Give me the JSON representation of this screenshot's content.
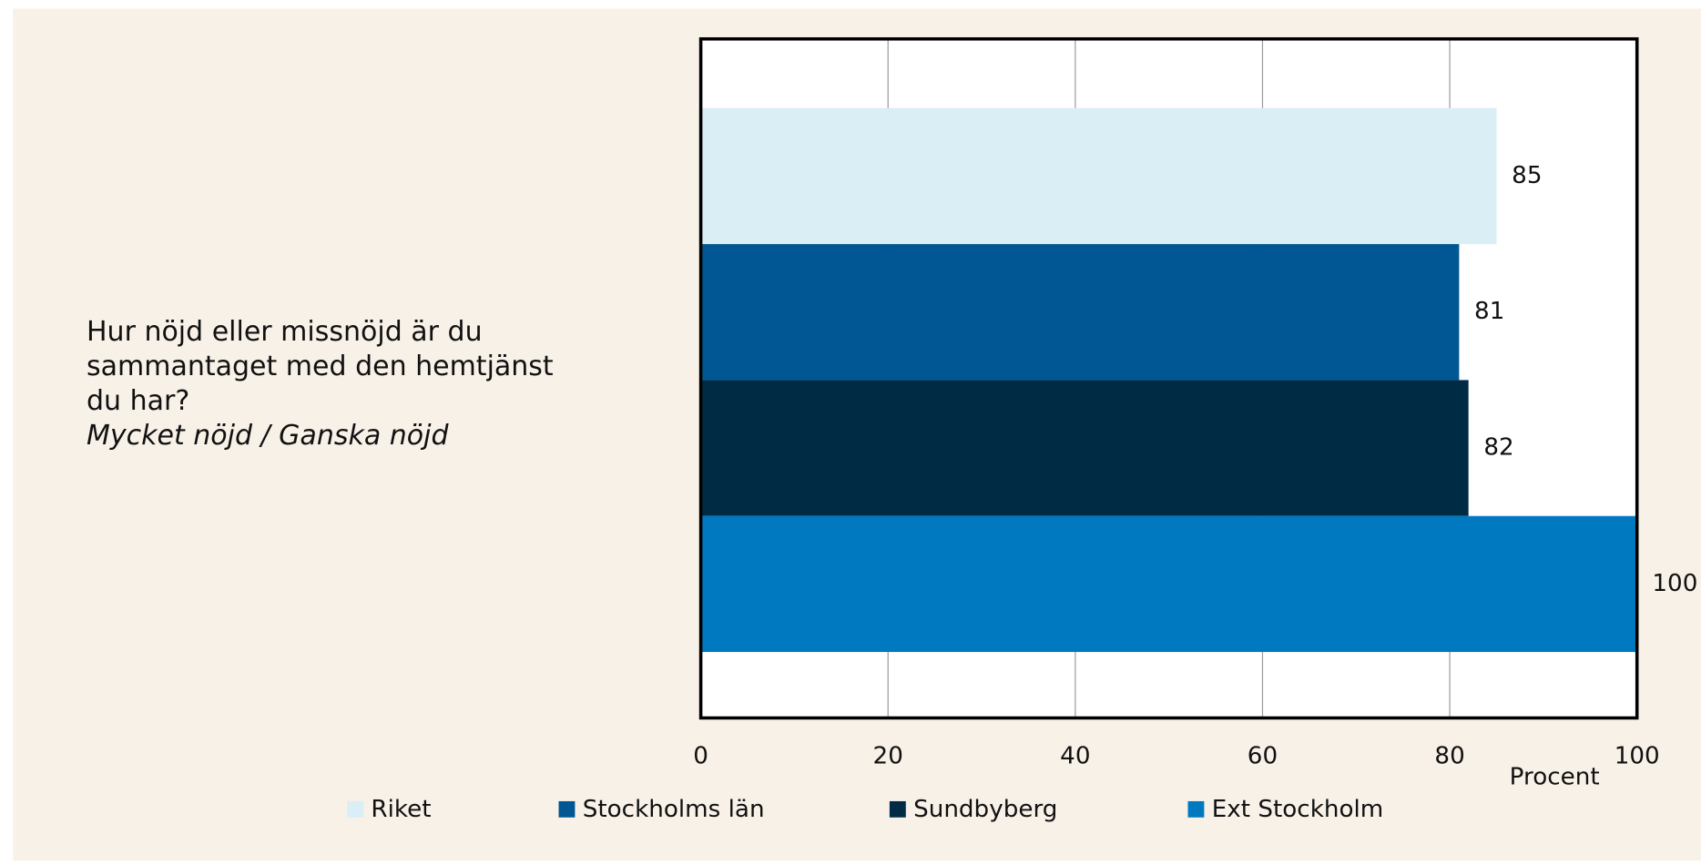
{
  "chart_data": {
    "type": "bar",
    "orientation": "horizontal",
    "categories": [
      "Hur nöjd eller missnöjd är du sammantaget med den hemtjänst du har?"
    ],
    "subtitle": "Mycket nöjd / Ganska nöjd",
    "xlabel": "Procent",
    "series": [
      {
        "name": "Riket",
        "color": "#daeef6",
        "values": [
          85
        ]
      },
      {
        "name": "Stockholms län",
        "color": "#005793",
        "values": [
          81
        ]
      },
      {
        "name": "Sundbyberg",
        "color": "#002b45",
        "values": [
          82
        ]
      },
      {
        "name": "Ext Stockholm",
        "color": "#0079c1",
        "values": [
          100
        ]
      }
    ],
    "xlim": [
      0,
      100
    ],
    "xticks": [
      0,
      20,
      40,
      60,
      80,
      100
    ],
    "grid": true,
    "legend": "bottom"
  }
}
